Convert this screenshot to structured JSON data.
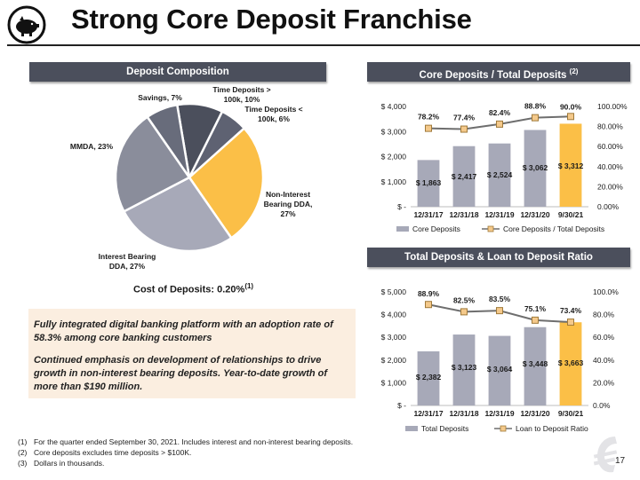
{
  "title": "Strong Core Deposit Franchise",
  "page_number": "17",
  "colors": {
    "header_bg": "#4b4f5c",
    "bar_gray": "#a7a9b8",
    "bar_highlight": "#fbbf47",
    "line_color": "#6e6e6e",
    "marker_fill": "#f4c98b",
    "marker_stroke": "#a07a3a",
    "text_box_bg": "#fbeee0",
    "pie_time_deposits_large": "#4b4f5c",
    "pie_time_deposits_small": "#5e6272",
    "pie_non_interest_ddA": "#fbbf47",
    "pie_interest_ddA": "#a7a9b8",
    "pie_mmda": "#8a8d9b",
    "pie_savings": "#686c7b"
  },
  "icons": {
    "logo": "piggy-bank-icon",
    "watermark": "bank-logo-icon"
  },
  "headers": {
    "deposit_composition": "Deposit Composition",
    "core_deposits": "Core Deposits / Total Deposits",
    "core_deposits_sup": "(2)",
    "total_deposits": "Total Deposits & Loan to Deposit Ratio"
  },
  "cost_of_deposits": {
    "text": "Cost of Deposits: 0.20%",
    "sup": "(1)"
  },
  "text_box": {
    "para1": "Fully integrated digital banking platform with an adoption rate of 58.3% among core banking customers",
    "para2": "Continued emphasis on development of relationships to drive growth in non-interest bearing deposits.  Year-to-date growth of more than $190 million."
  },
  "footnotes": [
    {
      "num": "(1)",
      "text": "For the quarter ended September 30, 2021.  Includes interest and non-interest bearing deposits."
    },
    {
      "num": "(2)",
      "text": "Core deposits excludes time deposits > $100K."
    },
    {
      "num": "(3)",
      "text": "Dollars in thousands."
    }
  ],
  "chart_data": [
    {
      "type": "pie",
      "slices": [
        {
          "label_lines": [
            "Time Deposits >",
            "100k, 10%"
          ],
          "value": 10,
          "color_key": "pie_time_deposits_large"
        },
        {
          "label_lines": [
            "Time Deposits <",
            "100k, 6%"
          ],
          "value": 6,
          "color_key": "pie_time_deposits_small"
        },
        {
          "label_lines": [
            "Non-Interest",
            "Bearing DDA,",
            "27%"
          ],
          "value": 27,
          "color_key": "pie_non_interest_ddA"
        },
        {
          "label_lines": [
            "Interest Bearing",
            "DDA, 27%"
          ],
          "value": 27,
          "color_key": "pie_interest_ddA"
        },
        {
          "label_lines": [
            "MMDA, 23%"
          ],
          "value": 23,
          "color_key": "pie_mmda"
        },
        {
          "label_lines": [
            "Savings, 7%"
          ],
          "value": 7,
          "color_key": "pie_savings"
        }
      ]
    },
    {
      "type": "bar",
      "categories": [
        "12/31/17",
        "12/31/18",
        "12/31/19",
        "12/31/20",
        "9/30/21"
      ],
      "series": [
        {
          "name": "Core Deposits",
          "kind": "bar",
          "values": [
            1863,
            2417,
            2524,
            3062,
            3312
          ],
          "labels": [
            "$ 1,863",
            "$ 2,417",
            "$ 2,524",
            "$ 3,062",
            "$ 3,312"
          ]
        },
        {
          "name": "Core Deposits / Total Deposits",
          "kind": "line",
          "values": [
            78.2,
            77.4,
            82.4,
            88.8,
            90.0
          ],
          "labels": [
            "78.2%",
            "77.4%",
            "82.4%",
            "88.8%",
            "90.0%"
          ]
        }
      ],
      "y_left": {
        "ylim": [
          0,
          4000
        ],
        "ticks": [
          "$ -",
          "$ 1,000",
          "$ 2,000",
          "$ 3,000",
          "$ 4,000"
        ]
      },
      "y_right": {
        "ylim": [
          0,
          100
        ],
        "ticks": [
          "0.00%",
          "20.00%",
          "40.00%",
          "60.00%",
          "80.00%",
          "100.00%"
        ]
      },
      "highlight_last_bar": true,
      "legend_position": "bottom"
    },
    {
      "type": "bar",
      "categories": [
        "12/31/17",
        "12/31/18",
        "12/31/19",
        "12/31/20",
        "9/30/21"
      ],
      "series": [
        {
          "name": "Total Deposits",
          "kind": "bar",
          "values": [
            2382,
            3123,
            3064,
            3448,
            3663
          ],
          "labels": [
            "$ 2,382",
            "$ 3,123",
            "$ 3,064",
            "$ 3,448",
            "$ 3,663"
          ]
        },
        {
          "name": "Loan to Deposit Ratio",
          "kind": "line",
          "values": [
            88.9,
            82.5,
            83.5,
            75.1,
            73.4
          ],
          "labels": [
            "88.9%",
            "82.5%",
            "83.5%",
            "75.1%",
            "73.4%"
          ]
        }
      ],
      "y_left": {
        "ylim": [
          0,
          5000
        ],
        "ticks": [
          "$ -",
          "$ 1,000",
          "$ 2,000",
          "$ 3,000",
          "$ 4,000",
          "$ 5,000"
        ]
      },
      "y_right": {
        "ylim": [
          0,
          100
        ],
        "ticks": [
          "0.0%",
          "20.0%",
          "40.0%",
          "60.0%",
          "80.0%",
          "100.0%"
        ]
      },
      "highlight_last_bar": true,
      "legend_position": "bottom"
    }
  ]
}
